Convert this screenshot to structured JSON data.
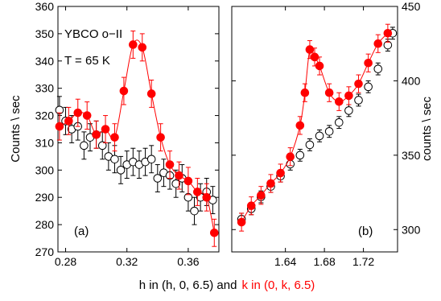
{
  "chart_data": [
    {
      "type": "scatter",
      "panel_label": "(a)",
      "annotations": [
        "YBCO o−II",
        "T = 65 K"
      ],
      "ylabel": "Counts \\ sec",
      "xlim": [
        0.275,
        0.38
      ],
      "ylim": [
        270,
        360
      ],
      "xticks": [
        "0.28",
        "0.32",
        "0.36"
      ],
      "yticks": [
        "270",
        "280",
        "290",
        "300",
        "310",
        "320",
        "330",
        "340",
        "350",
        "360"
      ],
      "series": [
        {
          "marker": "open-circle",
          "color": "#000000",
          "x": [
            0.276,
            0.28,
            0.284,
            0.288,
            0.292,
            0.296,
            0.3,
            0.304,
            0.308,
            0.312,
            0.316,
            0.32,
            0.324,
            0.328,
            0.332,
            0.336,
            0.34,
            0.344,
            0.348,
            0.352,
            0.356,
            0.36,
            0.364,
            0.368,
            0.372,
            0.376
          ],
          "y": [
            322,
            318,
            315,
            316,
            309,
            312,
            313,
            309,
            305,
            304,
            300,
            302,
            303,
            302,
            303,
            304,
            297,
            299,
            298,
            295,
            297,
            290,
            285,
            290,
            292,
            289
          ],
          "err": [
            5,
            5,
            5,
            5,
            5,
            5,
            5,
            5,
            5,
            5,
            5,
            5,
            5,
            5,
            5,
            5,
            5,
            5,
            5,
            5,
            5,
            5,
            5,
            5,
            5,
            5
          ]
        },
        {
          "marker": "filled-circle",
          "color": "#ff0000",
          "x": [
            0.276,
            0.282,
            0.288,
            0.294,
            0.3,
            0.306,
            0.312,
            0.318,
            0.324,
            0.33,
            0.336,
            0.342,
            0.348,
            0.354,
            0.36,
            0.366,
            0.372,
            0.377
          ],
          "y": [
            316,
            318,
            321,
            320,
            313,
            315,
            312,
            329,
            346,
            345,
            328,
            312,
            302,
            298,
            296,
            292,
            290,
            277
          ],
          "err": [
            5,
            5,
            5,
            5,
            5,
            5,
            5,
            5,
            5,
            5,
            5,
            5,
            5,
            5,
            5,
            5,
            5,
            5
          ]
        }
      ]
    },
    {
      "type": "scatter",
      "panel_label": "(b)",
      "ylabel": "counts \\ sec",
      "ylabel_side": "right",
      "xlim": [
        1.585,
        1.755
      ],
      "ylim": [
        285,
        450
      ],
      "xticks": [
        "1.64",
        "1.68",
        "1.72"
      ],
      "yticks": [
        "300",
        "350",
        "400",
        "450"
      ],
      "series": [
        {
          "marker": "open-circle",
          "color": "#000000",
          "x": [
            1.595,
            1.605,
            1.615,
            1.625,
            1.635,
            1.645,
            1.655,
            1.665,
            1.675,
            1.685,
            1.695,
            1.705,
            1.715,
            1.725,
            1.735,
            1.745,
            1.75
          ],
          "y": [
            307,
            314,
            322,
            329,
            336,
            344,
            350,
            357,
            363,
            366,
            372,
            380,
            387,
            396,
            408,
            424,
            432
          ],
          "err": [
            4,
            4,
            4,
            4,
            4,
            4,
            4,
            4,
            4,
            4,
            4,
            4,
            4,
            4,
            4,
            4,
            4
          ]
        },
        {
          "marker": "filled-circle",
          "color": "#ff0000",
          "x": [
            1.595,
            1.605,
            1.615,
            1.625,
            1.635,
            1.645,
            1.655,
            1.66,
            1.665,
            1.67,
            1.675,
            1.685,
            1.695,
            1.705,
            1.715,
            1.725,
            1.735,
            1.745
          ],
          "y": [
            305,
            316,
            323,
            331,
            338,
            349,
            370,
            392,
            421,
            416,
            410,
            392,
            386,
            390,
            398,
            412,
            425,
            432
          ],
          "err": [
            6,
            6,
            6,
            6,
            6,
            6,
            6,
            6,
            6,
            6,
            6,
            6,
            6,
            6,
            6,
            6,
            6,
            6
          ]
        }
      ]
    }
  ],
  "xlabel_parts": {
    "black": "h in (h, 0, 6.5) and",
    "red": "k in (0, k, 6.5)"
  }
}
